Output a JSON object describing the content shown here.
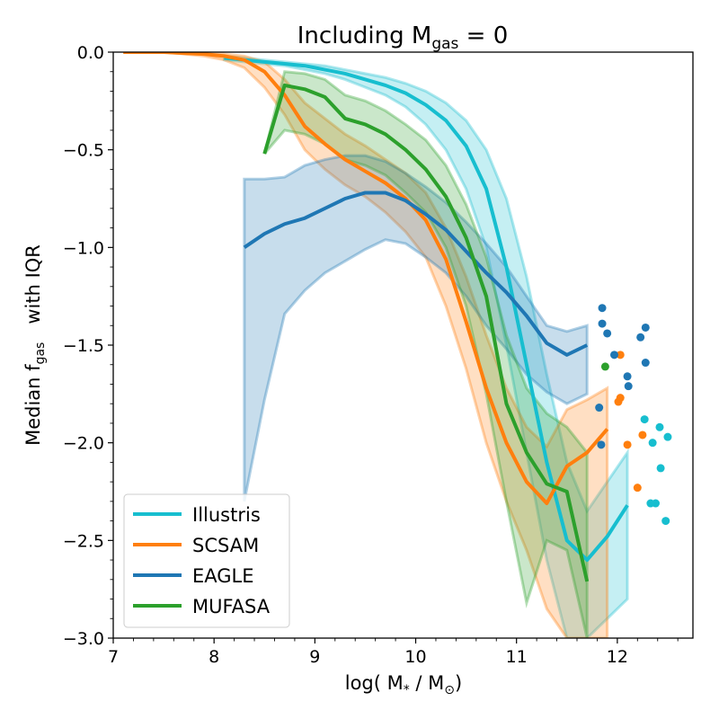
{
  "chart_data": {
    "type": "line",
    "title": "Including M",
    "title_sub": "gas",
    "title_tail": " = 0",
    "xlabel_prefix": "log( M",
    "xlabel_sub1": "*",
    "xlabel_mid": " / M",
    "xlabel_sub2": "⊙",
    "xlabel_suffix": ")",
    "ylabel_prefix": "Median f",
    "ylabel_sub": "gas",
    "ylabel_suffix": "   with IQR",
    "xlim": [
      7,
      12.75
    ],
    "ylim": [
      -3.0,
      0.0
    ],
    "xticks": [
      7,
      8,
      9,
      10,
      11,
      12
    ],
    "yticks": [
      0.0,
      -0.5,
      -1.0,
      -1.5,
      -2.0,
      -2.5,
      -3.0
    ],
    "ytick_labels": [
      "0.0",
      "−0.5",
      "−1.0",
      "−1.5",
      "−2.0",
      "−2.5",
      "−3.0"
    ],
    "xtick_labels": [
      "7",
      "8",
      "9",
      "10",
      "11",
      "12"
    ],
    "legend_position": "lower-left",
    "series": [
      {
        "name": "Illustris",
        "color": "#17becf",
        "x": [
          8.1,
          8.3,
          8.5,
          8.7,
          8.9,
          9.1,
          9.3,
          9.5,
          9.7,
          9.9,
          10.1,
          10.3,
          10.5,
          10.7,
          10.9,
          11.1,
          11.3,
          11.5,
          11.7,
          11.9,
          12.1
        ],
        "median": [
          -0.03,
          -0.04,
          -0.05,
          -0.06,
          -0.07,
          -0.09,
          -0.11,
          -0.14,
          -0.17,
          -0.21,
          -0.27,
          -0.35,
          -0.48,
          -0.7,
          -1.1,
          -1.6,
          -2.1,
          -2.5,
          -2.6,
          -2.48,
          -2.32
        ],
        "upper": [
          -0.02,
          -0.03,
          -0.04,
          -0.05,
          -0.06,
          -0.07,
          -0.09,
          -0.11,
          -0.13,
          -0.16,
          -0.2,
          -0.26,
          -0.35,
          -0.5,
          -0.75,
          -1.15,
          -1.65,
          -2.1,
          -2.35,
          -2.2,
          -2.05
        ],
        "lower": [
          -0.04,
          -0.05,
          -0.06,
          -0.07,
          -0.09,
          -0.11,
          -0.14,
          -0.18,
          -0.22,
          -0.28,
          -0.37,
          -0.5,
          -0.7,
          -1.0,
          -1.5,
          -2.05,
          -2.6,
          -3.0,
          -3.0,
          -2.9,
          -2.8
        ],
        "scatter_x": [
          12.27,
          12.35,
          12.42,
          12.5,
          12.38,
          12.43,
          12.33,
          12.48
        ],
        "scatter_y": [
          -1.88,
          -2.0,
          -1.92,
          -1.97,
          -2.31,
          -2.13,
          -2.31,
          -2.4
        ]
      },
      {
        "name": "SCSAM",
        "color": "#ff7f0e",
        "x": [
          7.1,
          7.3,
          7.5,
          7.7,
          7.9,
          8.1,
          8.3,
          8.5,
          8.7,
          8.9,
          9.1,
          9.3,
          9.5,
          9.7,
          9.9,
          10.1,
          10.3,
          10.5,
          10.7,
          10.9,
          11.1,
          11.3,
          11.5,
          11.7,
          11.9
        ],
        "median": [
          0.0,
          0.0,
          0.0,
          -0.005,
          -0.01,
          -0.02,
          -0.04,
          -0.1,
          -0.22,
          -0.38,
          -0.47,
          -0.55,
          -0.61,
          -0.67,
          -0.75,
          -0.86,
          -1.06,
          -1.38,
          -1.72,
          -2.0,
          -2.2,
          -2.31,
          -2.12,
          -2.05,
          -1.93
        ],
        "upper": [
          0.0,
          0.0,
          0.0,
          0.0,
          0.0,
          -0.01,
          -0.02,
          -0.05,
          -0.14,
          -0.26,
          -0.34,
          -0.42,
          -0.48,
          -0.55,
          -0.62,
          -0.72,
          -0.9,
          -1.15,
          -1.45,
          -1.72,
          -1.92,
          -2.02,
          -1.83,
          -1.78,
          -1.72
        ],
        "lower": [
          0.0,
          0.0,
          0.0,
          -0.01,
          -0.02,
          -0.04,
          -0.08,
          -0.18,
          -0.32,
          -0.5,
          -0.6,
          -0.68,
          -0.74,
          -0.82,
          -0.92,
          -1.05,
          -1.3,
          -1.62,
          -2.0,
          -2.3,
          -2.55,
          -2.85,
          -3.0,
          -3.0,
          -3.0
        ],
        "scatter_x": [
          12.03,
          12.03,
          12.01,
          12.1,
          12.2,
          12.25
        ],
        "scatter_y": [
          -1.55,
          -1.77,
          -1.79,
          -2.01,
          -2.23,
          -1.96
        ]
      },
      {
        "name": "EAGLE",
        "color": "#1f77b4",
        "x": [
          8.3,
          8.5,
          8.7,
          8.9,
          9.1,
          9.3,
          9.5,
          9.7,
          9.9,
          10.1,
          10.3,
          10.5,
          10.7,
          10.9,
          11.1,
          11.3,
          11.5,
          11.7
        ],
        "median": [
          -1.0,
          -0.93,
          -0.88,
          -0.85,
          -0.8,
          -0.75,
          -0.72,
          -0.72,
          -0.76,
          -0.83,
          -0.91,
          -1.02,
          -1.13,
          -1.23,
          -1.35,
          -1.49,
          -1.55,
          -1.5
        ],
        "upper": [
          -0.65,
          -0.65,
          -0.64,
          -0.58,
          -0.55,
          -0.53,
          -0.53,
          -0.56,
          -0.62,
          -0.69,
          -0.77,
          -0.87,
          -0.98,
          -1.1,
          -1.25,
          -1.4,
          -1.43,
          -1.4
        ],
        "lower": [
          -2.3,
          -1.78,
          -1.34,
          -1.22,
          -1.13,
          -1.07,
          -1.01,
          -0.96,
          -0.98,
          -1.05,
          -1.13,
          -1.25,
          -1.4,
          -1.52,
          -1.65,
          -1.74,
          -1.8,
          -1.75
        ],
        "scatter_x": [
          11.85,
          11.85,
          11.9,
          11.97,
          11.82,
          11.84,
          12.1,
          12.11,
          12.23,
          12.28,
          12.28
        ],
        "scatter_y": [
          -1.31,
          -1.39,
          -1.44,
          -1.55,
          -1.82,
          -2.01,
          -1.66,
          -1.71,
          -1.46,
          -1.41,
          -1.59
        ]
      },
      {
        "name": "MUFASA",
        "color": "#2ca02c",
        "x": [
          8.5,
          8.7,
          8.9,
          9.1,
          9.3,
          9.5,
          9.7,
          9.9,
          10.1,
          10.3,
          10.5,
          10.7,
          10.9,
          11.1,
          11.3,
          11.5,
          11.7
        ],
        "median": [
          -0.52,
          -0.17,
          -0.19,
          -0.23,
          -0.34,
          -0.37,
          -0.42,
          -0.5,
          -0.6,
          -0.74,
          -0.95,
          -1.25,
          -1.8,
          -2.05,
          -2.21,
          -2.25,
          -2.71
        ],
        "upper": [
          -0.52,
          -0.1,
          -0.11,
          -0.14,
          -0.22,
          -0.25,
          -0.3,
          -0.37,
          -0.45,
          -0.58,
          -0.78,
          -1.05,
          -1.45,
          -1.72,
          -1.85,
          -1.92,
          -2.05
        ],
        "lower": [
          -0.52,
          -0.4,
          -0.42,
          -0.47,
          -0.55,
          -0.58,
          -0.63,
          -0.72,
          -0.82,
          -1.0,
          -1.3,
          -1.75,
          -2.3,
          -2.82,
          -2.5,
          -2.55,
          -3.0
        ],
        "scatter_x": [
          11.88
        ],
        "scatter_y": [
          -1.61
        ]
      }
    ]
  }
}
